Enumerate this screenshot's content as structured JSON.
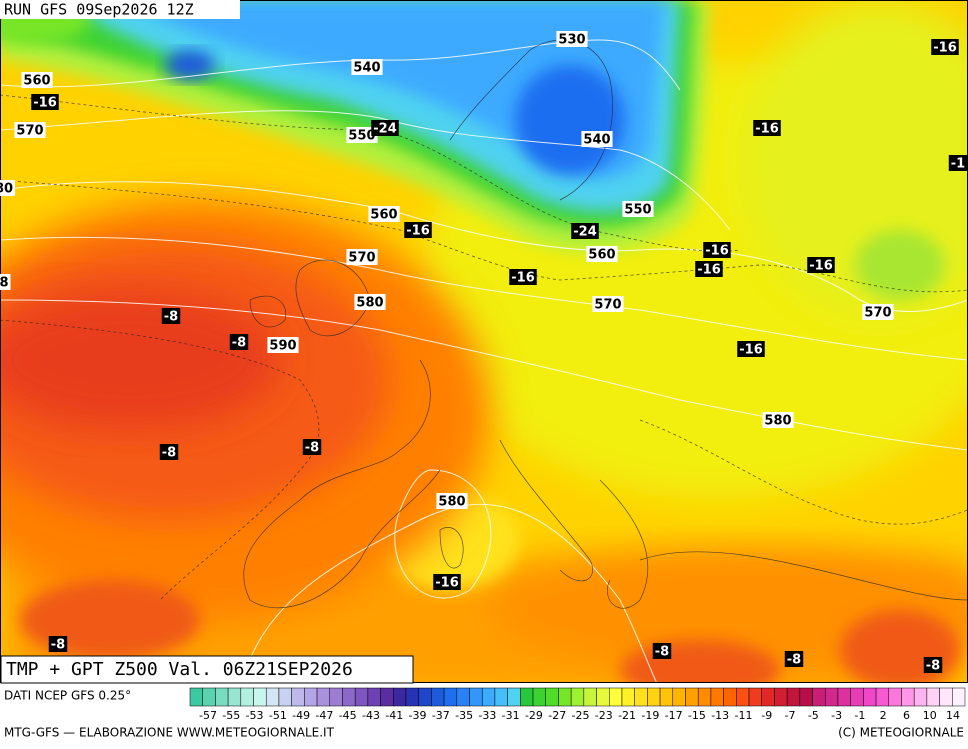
{
  "header": {
    "run": "RUN GFS 09Sep2026 12Z"
  },
  "map": {
    "geopotential_labels": [
      "530",
      "540",
      "560",
      "570",
      "550",
      "540",
      "560",
      "550",
      "560",
      "570",
      "580",
      "570",
      "590",
      "570",
      "580",
      "580",
      "80",
      "8"
    ],
    "temperature_labels": [
      "-16",
      "-16",
      "-24",
      "-16",
      "-1",
      "-16",
      "-24",
      "-16",
      "-16",
      "-16",
      "-16",
      "-8",
      "-8",
      "-16",
      "-8",
      "-8",
      "-16",
      "-8",
      "-8",
      "-8",
      "-8"
    ]
  },
  "title_box": "TMP + GPT Z500 Val. 06Z21SEP2026",
  "legend": {
    "source": "DATI NCEP GFS 0.25°",
    "colors": [
      "#3cc8a0",
      "#5ad2b0",
      "#78dcc0",
      "#96e6d0",
      "#b4f0e0",
      "#c8f5ec",
      "#d2e6f5",
      "#c8d2f0",
      "#beb9eb",
      "#b4a5e6",
      "#aa91dc",
      "#9b7dd2",
      "#8c69c8",
      "#7d55be",
      "#6e41b4",
      "#5a2da0",
      "#3c28a0",
      "#2832b4",
      "#1e46c8",
      "#1e5adc",
      "#1e6ef0",
      "#2882f5",
      "#3296fa",
      "#3caaff",
      "#46befa",
      "#50d2f0",
      "#28c83c",
      "#3cd232",
      "#50dc28",
      "#78e628",
      "#a0f032",
      "#c8f53c",
      "#e6fa3c",
      "#ffff3c",
      "#fff028",
      "#ffe11e",
      "#ffd214",
      "#ffc30a",
      "#ffb400",
      "#ffa000",
      "#ff8c00",
      "#ff7800",
      "#ff6400",
      "#fa5014",
      "#f03c1e",
      "#e12828",
      "#d21e32",
      "#c3143c",
      "#b40f46",
      "#c81e78",
      "#d2288c",
      "#dc32a0",
      "#e63cb4",
      "#f046c8",
      "#f55ad2",
      "#fa78dc",
      "#ff96e6",
      "#ffb4f0",
      "#ffd2f5",
      "#ffe6fa",
      "#fff0ff"
    ],
    "labels": [
      "-57",
      "-55",
      "-53",
      "-51",
      "-49",
      "-47",
      "-45",
      "-43",
      "-41",
      "-39",
      "-37",
      "-35",
      "-33",
      "-31",
      "-29",
      "-27",
      "-25",
      "-23",
      "-21",
      "-19",
      "-17",
      "-15",
      "-13",
      "-11",
      "-9",
      "-7",
      "-5",
      "-3",
      "-1",
      "2",
      "6",
      "10",
      "14"
    ]
  },
  "footer": {
    "left": "MTG-GFS — ELABORAZIONE WWW.METEOGIORNALE.IT",
    "right": "(C) METEOGIORNALE"
  }
}
